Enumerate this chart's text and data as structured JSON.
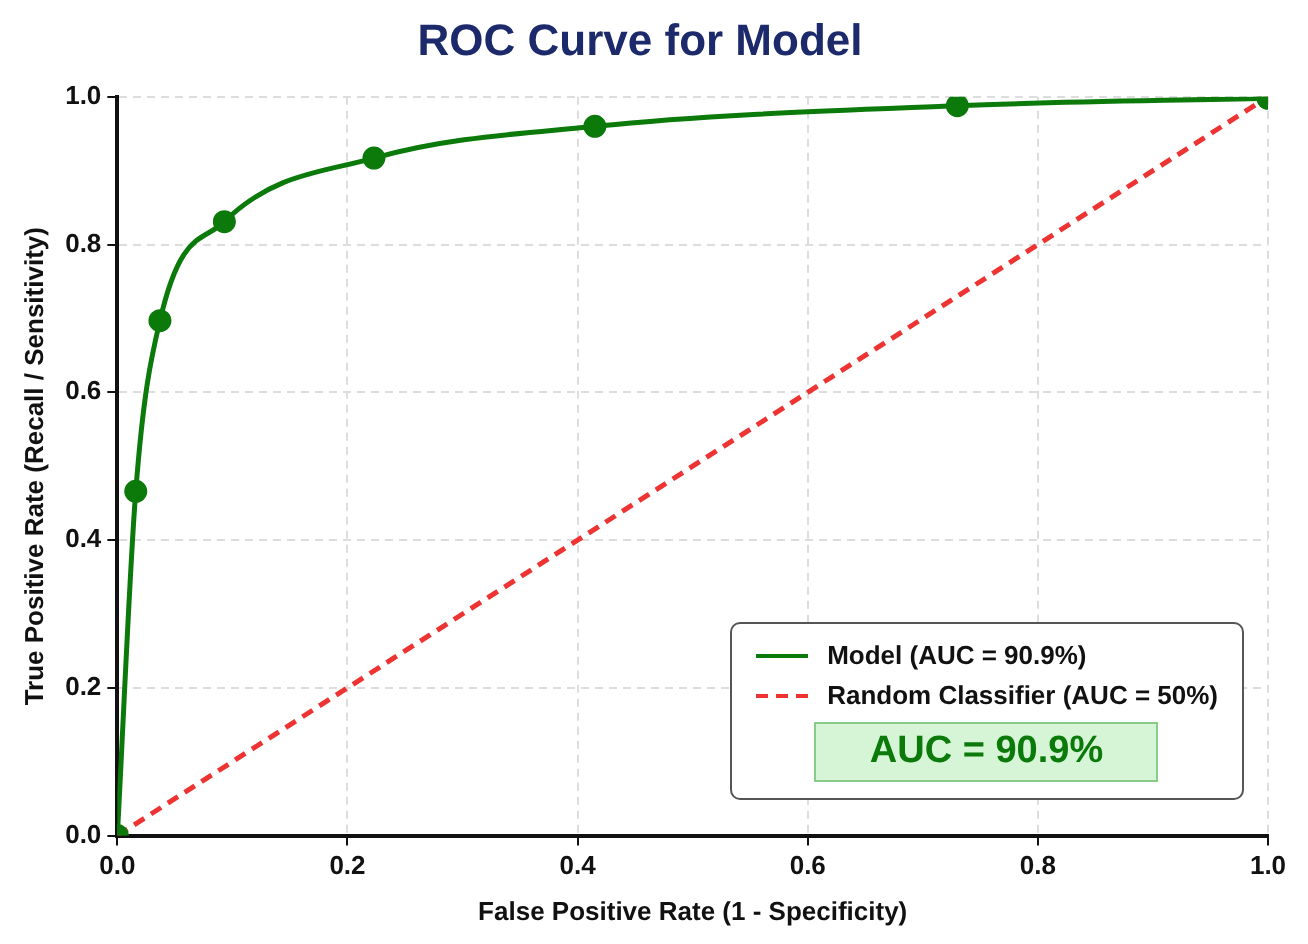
{
  "chart_data": {
    "type": "line",
    "title": "ROC Curve for Model",
    "xlabel": "False Positive Rate (1 - Specificity)",
    "ylabel": "True Positive Rate (Recall / Sensitivity)",
    "series": [
      {
        "name": "Model (AUC = 90.9%)",
        "color": "#0b7a0b",
        "x": [
          0,
          0.016,
          0.037,
          0.093,
          0.223,
          0.415,
          0.73,
          1
        ],
        "values": [
          0,
          0.466,
          0.697,
          0.831,
          0.917,
          0.96,
          0.988,
          0.998
        ],
        "marker": "circle",
        "line_style": "solid"
      },
      {
        "name": "Random Classifier (AUC = 50%)",
        "color": "#ee3333",
        "x": [
          0,
          1
        ],
        "values": [
          0,
          1
        ],
        "marker": "none",
        "line_style": "dashed"
      }
    ],
    "annotations": [
      "AUC = 90.9%"
    ],
    "xlim": [
      0,
      1
    ],
    "ylim": [
      0,
      1
    ],
    "xticks": [
      {
        "value": 0,
        "label": "0.0"
      },
      0.2,
      0.4,
      0.6,
      0.8,
      {
        "value": 1,
        "label": "1.0"
      }
    ],
    "yticks": [
      {
        "value": 0,
        "label": "0.0"
      },
      0.2,
      0.4,
      0.6,
      0.8,
      {
        "value": 1,
        "label": "1.0"
      }
    ],
    "grid": true,
    "legend": "bottom right"
  }
}
